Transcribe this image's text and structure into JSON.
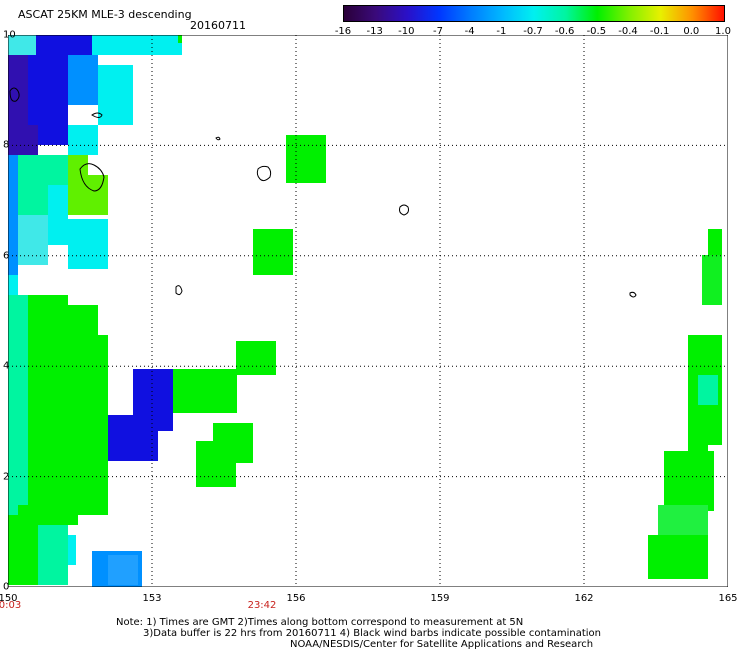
{
  "header": {
    "title": "ASCAT 25KM MLE-3 descending",
    "date": "20160711"
  },
  "colorbar": {
    "labels": [
      "-16",
      "-13",
      "-10",
      "-7",
      "-4",
      "-1",
      "-0.7",
      "-0.6",
      "-0.5",
      "-0.4",
      "-0.1",
      "0.0",
      "1.0"
    ],
    "colors": [
      "#2a0038",
      "#3a0a7a",
      "#2a10c8",
      "#0036ff",
      "#007cff",
      "#00b8ff",
      "#00f0f0",
      "#00f5a0",
      "#00f000",
      "#80f000",
      "#e8f000",
      "#ff9000",
      "#ff1000"
    ]
  },
  "map": {
    "lat_labels": [
      "10",
      "8",
      "6",
      "4",
      "2",
      "0"
    ],
    "lon_labels": [
      "150",
      "153",
      "156",
      "159",
      "162",
      "165"
    ],
    "time_labels": [
      "0:03",
      "23:42"
    ],
    "extent": {
      "lon_min": 150,
      "lon_max": 165,
      "lat_min": 0,
      "lat_max": 10
    }
  },
  "notes": {
    "line1": "Note: 1) Times are GMT 2)Times along bottom correspond to measurement at 5N",
    "line2": "3)Data buffer is 22 hrs from 20160711 4) Black wind barbs indicate possible contamination",
    "line3": "NOAA/NESDIS/Center for Satellite Applications and Research"
  }
}
